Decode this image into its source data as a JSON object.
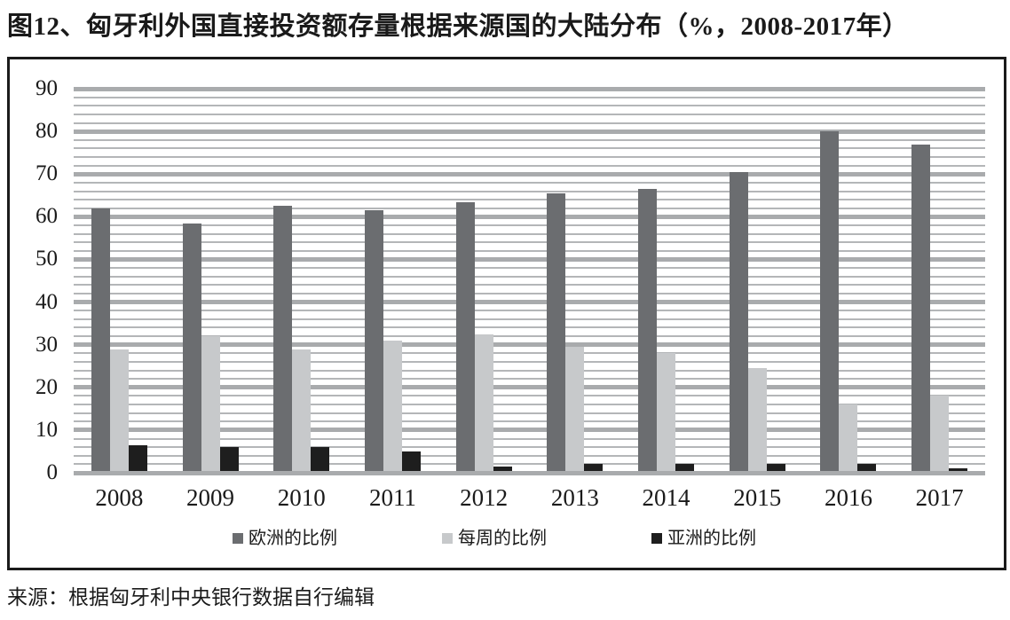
{
  "title": "图12、匈牙利外国直接投资额存量根据来源国的大陆分布（%，2008-2017年）",
  "source": "来源：根据匈牙利中央银行数据自行编辑",
  "colors": {
    "frame_border": "#1b1b1b",
    "gridline_minor": "#b4b6b8",
    "gridline_major": "#a9abad",
    "text": "#1a1a1a",
    "background": "#ffffff"
  },
  "chart_data": {
    "type": "bar",
    "title": "图12、匈牙利外国直接投资额存量根据来源国的大陆分布（%，2008-2017年）",
    "xlabel": "",
    "ylabel": "",
    "categories": [
      "2008",
      "2009",
      "2010",
      "2011",
      "2012",
      "2013",
      "2014",
      "2015",
      "2016",
      "2017"
    ],
    "series": [
      {
        "name": "欧洲的比例",
        "color": "#6b6d70",
        "values": [
          62,
          58.5,
          62.5,
          61.5,
          63.5,
          65.5,
          66.5,
          70.5,
          80,
          77
        ]
      },
      {
        "name": "每周的比例",
        "color": "#c7c9cb",
        "values": [
          29,
          32,
          29,
          31,
          32.5,
          29.5,
          28,
          24.5,
          16,
          18
        ]
      },
      {
        "name": "亚洲的比例",
        "color": "#1e1e1e",
        "values": [
          6.5,
          6,
          6,
          5,
          1.5,
          2,
          2,
          2,
          2,
          1
        ]
      }
    ],
    "ylim": [
      0,
      90
    ],
    "yticks": [
      0,
      10,
      20,
      30,
      40,
      50,
      60,
      70,
      80,
      90
    ],
    "gridline_minor_step": 2,
    "gridline_major_step": 10,
    "grid": "horizontal",
    "legend_position": "bottom"
  }
}
